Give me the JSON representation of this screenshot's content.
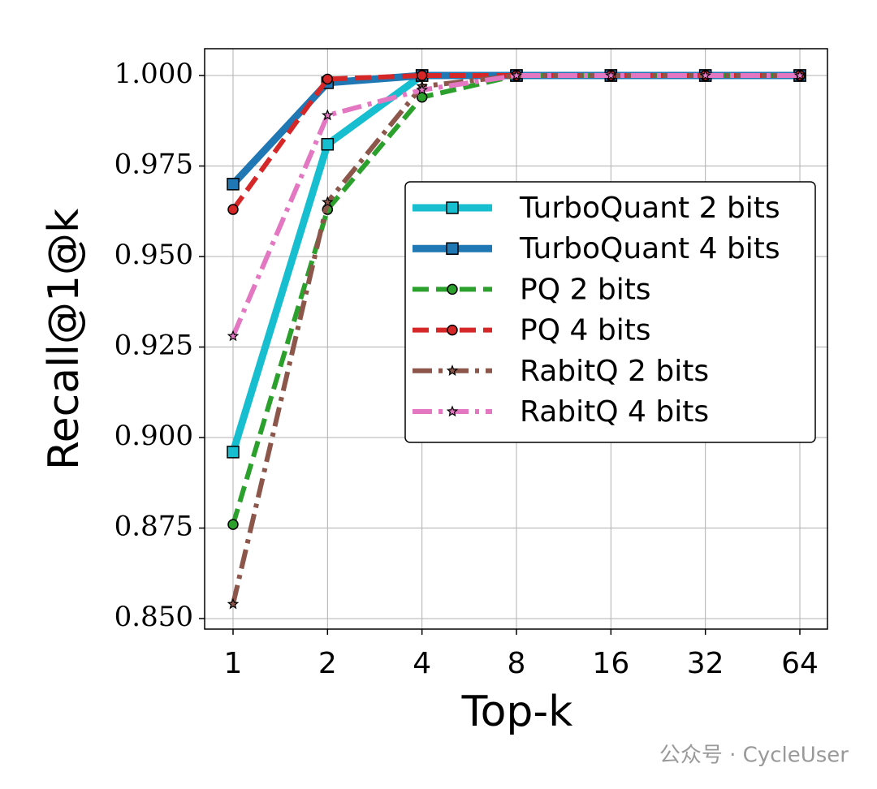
{
  "chart_data": {
    "type": "line",
    "x_label": "Top-k",
    "y_label": "Recall@1@k",
    "categories": [
      "1",
      "2",
      "4",
      "8",
      "16",
      "32",
      "64"
    ],
    "ylim": [
      0.8471,
      1.0074
    ],
    "yticks": [
      {
        "value": 0.85,
        "label": "0.850"
      },
      {
        "value": 0.875,
        "label": "0.875"
      },
      {
        "value": 0.9,
        "label": "0.900"
      },
      {
        "value": 0.925,
        "label": "0.925"
      },
      {
        "value": 0.95,
        "label": "0.950"
      },
      {
        "value": 0.975,
        "label": "0.975"
      },
      {
        "value": 1.0,
        "label": "1.000"
      }
    ],
    "grid": true,
    "legend": "right",
    "series": [
      {
        "name": "TurboQuant 2 bits",
        "color": "#17becf",
        "linestyle": "solid",
        "marker": "square",
        "values": [
          0.896,
          0.981,
          1.0,
          1.0,
          1.0,
          1.0,
          1.0
        ]
      },
      {
        "name": "TurboQuant 4 bits",
        "color": "#1f77b4",
        "linestyle": "solid",
        "marker": "square",
        "values": [
          0.97,
          0.998,
          1.0,
          1.0,
          1.0,
          1.0,
          1.0
        ]
      },
      {
        "name": "PQ 2 bits",
        "color": "#2ca02c",
        "linestyle": "dashed",
        "marker": "circle",
        "values": [
          0.876,
          0.963,
          0.994,
          1.0,
          1.0,
          1.0,
          1.0
        ]
      },
      {
        "name": "PQ 4 bits",
        "color": "#d62728",
        "linestyle": "dashed",
        "marker": "circle",
        "values": [
          0.963,
          0.999,
          1.0,
          1.0,
          1.0,
          1.0,
          1.0
        ]
      },
      {
        "name": "RabitQ 2 bits",
        "color": "#8c564b",
        "linestyle": "dashdot",
        "marker": "star",
        "values": [
          0.854,
          0.965,
          0.997,
          1.0,
          1.0,
          1.0,
          1.0
        ]
      },
      {
        "name": "RabitQ 4 bits",
        "color": "#e377c2",
        "linestyle": "dashdot",
        "marker": "star",
        "values": [
          0.928,
          0.989,
          0.996,
          1.0,
          1.0,
          1.0,
          1.0
        ]
      }
    ]
  },
  "watermark": "公众号 · CycleUser"
}
